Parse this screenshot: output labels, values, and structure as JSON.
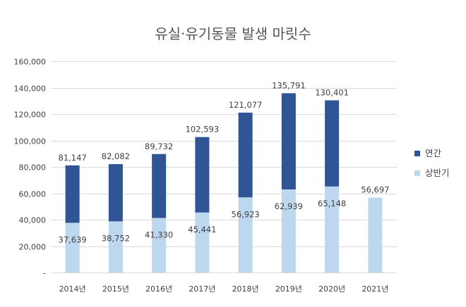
{
  "chart_data": {
    "type": "bar",
    "stacked": true,
    "title": "유실·유기동물 발생 마릿수",
    "categories": [
      "2014년",
      "2015년",
      "2016년",
      "2017년",
      "2018년",
      "2019년",
      "2020년",
      "2021년"
    ],
    "series": [
      {
        "name": "상반기",
        "color": "#bdd7ee",
        "values": [
          37639,
          38752,
          41330,
          45441,
          56923,
          62939,
          65148,
          56697
        ],
        "labels": [
          "37,639",
          "38,752",
          "41,330",
          "45,441",
          "56,923",
          "62,939",
          "65,148",
          "56,697"
        ]
      },
      {
        "name": "연간",
        "color": "#2f5597",
        "totals": [
          81147,
          82082,
          89732,
          102593,
          121077,
          135791,
          130401,
          null
        ],
        "labels": [
          "81,147",
          "82,082",
          "89,732",
          "102,593",
          "121,077",
          "135,791",
          "130,401",
          null
        ]
      }
    ],
    "ylim": [
      0,
      160000
    ],
    "yticks": [
      0,
      20000,
      40000,
      60000,
      80000,
      100000,
      120000,
      140000,
      160000
    ],
    "ytick_labels": [
      "-",
      "20,000",
      "40,000",
      "60,000",
      "80,000",
      "100,000",
      "120,000",
      "140,000",
      "160,000"
    ],
    "grid": true,
    "legend_position": "right",
    "legend_order": [
      "연간",
      "상반기"
    ]
  }
}
